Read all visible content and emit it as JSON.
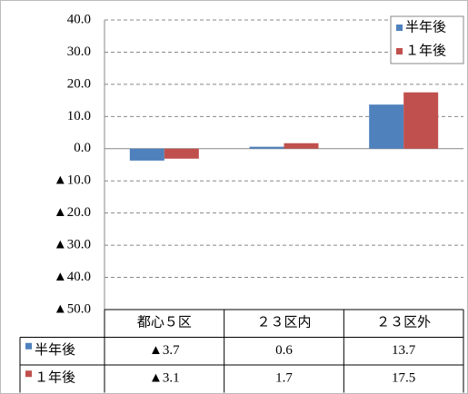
{
  "chart_data": {
    "type": "bar",
    "categories": [
      "都心５区",
      "２３区内",
      "２３区外"
    ],
    "series": [
      {
        "name": "半年後",
        "color": "#4f81bd",
        "values": [
          -3.7,
          0.6,
          13.7
        ],
        "value_labels": [
          "▲3.7",
          "0.6",
          "13.7"
        ]
      },
      {
        "name": "１年後",
        "color": "#c0504d",
        "values": [
          -3.1,
          1.7,
          17.5
        ],
        "value_labels": [
          "▲3.1",
          "1.7",
          "17.5"
        ]
      }
    ],
    "ylim": [
      -50,
      40
    ],
    "yticks": [
      {
        "value": -50,
        "label": "▲50.0"
      },
      {
        "value": -40,
        "label": "▲40.0"
      },
      {
        "value": -30,
        "label": "▲30.0"
      },
      {
        "value": -20,
        "label": "▲20.0"
      },
      {
        "value": -10,
        "label": "▲10.0"
      },
      {
        "value": 0,
        "label": "0.0"
      },
      {
        "value": 10,
        "label": "10.0"
      },
      {
        "value": 20,
        "label": "20.0"
      },
      {
        "value": 30,
        "label": "30.0"
      },
      {
        "value": 40,
        "label": "40.0"
      }
    ],
    "grid": true,
    "legend": "top-right"
  }
}
